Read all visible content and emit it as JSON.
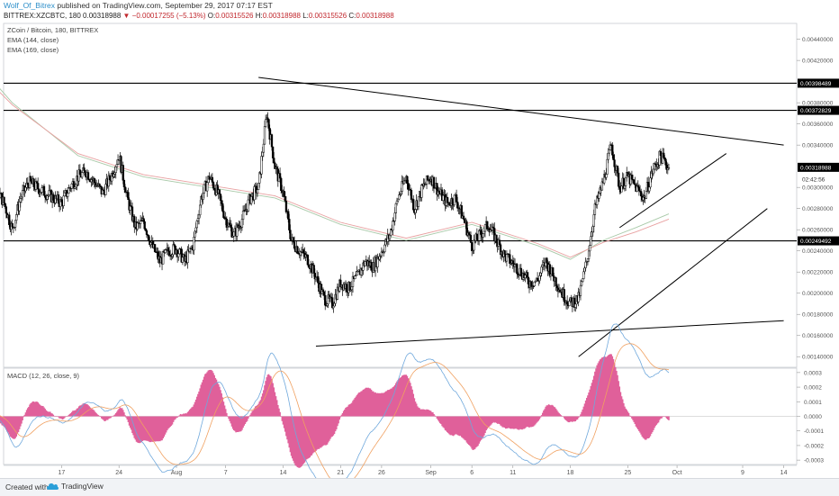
{
  "header": {
    "author": "Wolf_Of_Bitrex",
    "published_text": " published on TradingView.com, September 29, 2017 07:17 EST",
    "symbol": "BITTREX:XZCBTC, 180",
    "last": "0.00318988",
    "change": "▼ −0.00017255 (−5.13%)",
    "open_label": "O:",
    "open": "0.00315526",
    "high_label": "H:",
    "high": "0.00318988",
    "low_label": "L:",
    "low": "0.00315526",
    "close_label": "C:",
    "close": "0.00318988"
  },
  "legend": {
    "title": "ZCoin / Bitcoin, 180, BITTREX",
    "ema1": "EMA (144, close)",
    "ema2": "EMA (169, close)",
    "macd": "MACD (12, 26, close, 9)"
  },
  "footer": {
    "created": "Created with",
    "brand": "TradingView"
  },
  "colors": {
    "up": "#000000",
    "down": "#000000",
    "ema144": "#a8c9a8",
    "ema169": "#e8a0a0",
    "macd": "#6fa8dc",
    "signal": "#f0a060",
    "hist": "#e0609a",
    "price_tag": "#000000"
  },
  "chart_data": [
    {
      "type": "candlestick",
      "title": "ZCoin / Bitcoin, 180, BITTREX",
      "y_ticks": [
        "0.00440000",
        "0.00420000",
        "0.00380000",
        "0.00360000",
        "0.00340000",
        "0.00300000",
        "0.00280000",
        "0.00260000",
        "0.00240000",
        "0.00220000",
        "0.00200000",
        "0.00180000",
        "0.00160000",
        "0.00140000"
      ],
      "price_tags": [
        {
          "label": "0.00398489",
          "value": 0.00398489,
          "kind": "hline"
        },
        {
          "label": "0.00372829",
          "value": 0.00372829,
          "kind": "hline"
        },
        {
          "label": "0.00318988",
          "value": 0.00318988,
          "kind": "last"
        },
        {
          "label": "02:42:56",
          "value": 0.00308,
          "kind": "timer"
        },
        {
          "label": "0.00249492",
          "value": 0.00249492,
          "kind": "hline"
        }
      ],
      "x_ticks": [
        "17",
        "24",
        "Aug",
        "7",
        "14",
        "21",
        "26",
        "Sep",
        "6",
        "11",
        "18",
        "25",
        "Oct",
        "9",
        "14"
      ],
      "x_tick_days": [
        -14,
        -7,
        0,
        6,
        13,
        20,
        25,
        31,
        36,
        41,
        48,
        55,
        61,
        69,
        74
      ],
      "date_origin": "Aug 1",
      "ylim": [
        0.0013,
        0.00455
      ],
      "price_path": [
        [
          -26,
          0.00305
        ],
        [
          -24,
          0.00312
        ],
        [
          -22,
          0.003
        ],
        [
          -21,
          0.00285
        ],
        [
          -20,
          0.0026
        ],
        [
          -19,
          0.0029
        ],
        [
          -18,
          0.00305
        ],
        [
          -17,
          0.003
        ],
        [
          -15,
          0.0029
        ],
        [
          -14,
          0.00285
        ],
        [
          -13,
          0.003
        ],
        [
          -12,
          0.0031
        ],
        [
          -11,
          0.00315
        ],
        [
          -10,
          0.00305
        ],
        [
          -9,
          0.00295
        ],
        [
          -8,
          0.0031
        ],
        [
          -7,
          0.0033
        ],
        [
          -6,
          0.0029
        ],
        [
          -5,
          0.00262
        ],
        [
          -4,
          0.00268
        ],
        [
          -3,
          0.00245
        ],
        [
          -2,
          0.0023
        ],
        [
          -1,
          0.0024
        ],
        [
          0,
          0.00242
        ],
        [
          1,
          0.0023
        ],
        [
          2,
          0.00245
        ],
        [
          3,
          0.0029
        ],
        [
          4,
          0.0031
        ],
        [
          5,
          0.00295
        ],
        [
          6,
          0.0027
        ],
        [
          7,
          0.00255
        ],
        [
          8,
          0.0027
        ],
        [
          9,
          0.0029
        ],
        [
          10,
          0.003
        ],
        [
          11,
          0.0037
        ],
        [
          12,
          0.0032
        ],
        [
          13,
          0.00295
        ],
        [
          14,
          0.0025
        ],
        [
          15,
          0.0024
        ],
        [
          16,
          0.00232
        ],
        [
          17,
          0.00215
        ],
        [
          18,
          0.00195
        ],
        [
          19,
          0.0019
        ],
        [
          20,
          0.0021
        ],
        [
          21,
          0.00205
        ],
        [
          22,
          0.00215
        ],
        [
          23,
          0.0023
        ],
        [
          24,
          0.00225
        ],
        [
          25,
          0.0024
        ],
        [
          26,
          0.00255
        ],
        [
          27,
          0.0029
        ],
        [
          28,
          0.0031
        ],
        [
          29,
          0.0028
        ],
        [
          30,
          0.003
        ],
        [
          31,
          0.0031
        ],
        [
          32,
          0.00295
        ],
        [
          33,
          0.00285
        ],
        [
          34,
          0.0029
        ],
        [
          35,
          0.0027
        ],
        [
          36,
          0.00245
        ],
        [
          37,
          0.00255
        ],
        [
          38,
          0.00265
        ],
        [
          39,
          0.0025
        ],
        [
          40,
          0.00235
        ],
        [
          41,
          0.00228
        ],
        [
          42,
          0.0022
        ],
        [
          43,
          0.0021
        ],
        [
          44,
          0.00212
        ],
        [
          45,
          0.0023
        ],
        [
          46,
          0.00215
        ],
        [
          47,
          0.002
        ],
        [
          48,
          0.0019
        ],
        [
          49,
          0.00195
        ],
        [
          50,
          0.0023
        ],
        [
          51,
          0.0028
        ],
        [
          52,
          0.00305
        ],
        [
          53,
          0.0034
        ],
        [
          54,
          0.003
        ],
        [
          55,
          0.0031
        ],
        [
          56,
          0.003
        ],
        [
          57,
          0.0029
        ],
        [
          58,
          0.00315
        ],
        [
          59,
          0.0033
        ],
        [
          60,
          0.00318
        ]
      ],
      "ema144_path": [
        [
          -28,
          0.0045
        ],
        [
          -20,
          0.0038
        ],
        [
          -12,
          0.0033
        ],
        [
          -4,
          0.0031
        ],
        [
          4,
          0.003
        ],
        [
          12,
          0.0029
        ],
        [
          20,
          0.00265
        ],
        [
          28,
          0.0025
        ],
        [
          36,
          0.00265
        ],
        [
          44,
          0.00245
        ],
        [
          48,
          0.00232
        ],
        [
          52,
          0.0025
        ],
        [
          56,
          0.00262
        ],
        [
          60,
          0.00275
        ]
      ],
      "ema169_path": [
        [
          -28,
          0.0044
        ],
        [
          -20,
          0.00378
        ],
        [
          -12,
          0.00332
        ],
        [
          -4,
          0.00312
        ],
        [
          4,
          0.00302
        ],
        [
          12,
          0.00292
        ],
        [
          20,
          0.00267
        ],
        [
          28,
          0.00252
        ],
        [
          36,
          0.00267
        ],
        [
          44,
          0.00247
        ],
        [
          48,
          0.00234
        ],
        [
          52,
          0.00248
        ],
        [
          56,
          0.00258
        ],
        [
          60,
          0.0027
        ]
      ],
      "trendlines": [
        {
          "from": [
            10,
            0.00404
          ],
          "to": [
            74,
            0.0034
          ]
        },
        {
          "from": [
            17,
            0.0015
          ],
          "to": [
            74,
            0.00174
          ]
        },
        {
          "from": [
            49,
            0.0014
          ],
          "to": [
            72,
            0.0028
          ]
        },
        {
          "from": [
            54,
            0.00262
          ],
          "to": [
            67,
            0.00332
          ]
        }
      ]
    },
    {
      "type": "line",
      "title": "MACD (12, 26, close, 9)",
      "y_ticks": [
        "0.0003",
        "0.0002",
        "0.0001",
        "0.0000",
        "-0.0001",
        "-0.0002",
        "-0.0003"
      ],
      "ylim": [
        -0.00033,
        0.00033
      ]
    }
  ]
}
